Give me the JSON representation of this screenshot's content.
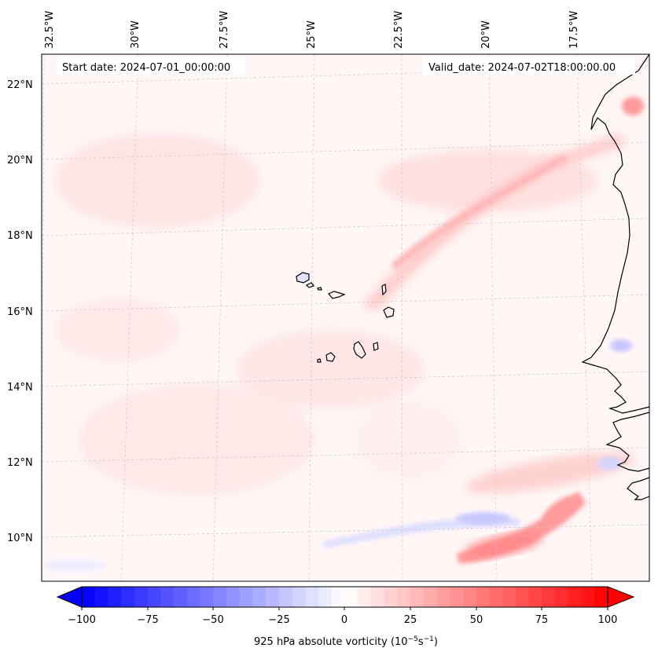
{
  "map": {
    "start_label": "Start date: 2024-07-01_00:00:00",
    "valid_label": "Valid_date: 2024-07-02T18:00:00.00",
    "lon_labels": [
      "32.5°W",
      "30°W",
      "27.5°W",
      "25°W",
      "22.5°W",
      "20°W",
      "17.5°W"
    ],
    "lat_labels": [
      "22°N",
      "20°N",
      "18°N",
      "16°N",
      "14°N",
      "12°N",
      "10°N"
    ],
    "features": [
      "Cape Verde islands",
      "West African coastline"
    ]
  },
  "colorbar": {
    "label_prefix": "925 hPa absolute vorticity (10",
    "exp1": "−5",
    "unit_mid": "s",
    "exp2": "−1",
    "label_suffix": ")",
    "ticks": [
      "−100",
      "−75",
      "−50",
      "−25",
      "0",
      "25",
      "50",
      "75",
      "100"
    ],
    "min": -100,
    "max": 100,
    "colors": {
      "negative": "#0000ff",
      "zero": "#ffffff",
      "positive": "#ff0000"
    }
  }
}
